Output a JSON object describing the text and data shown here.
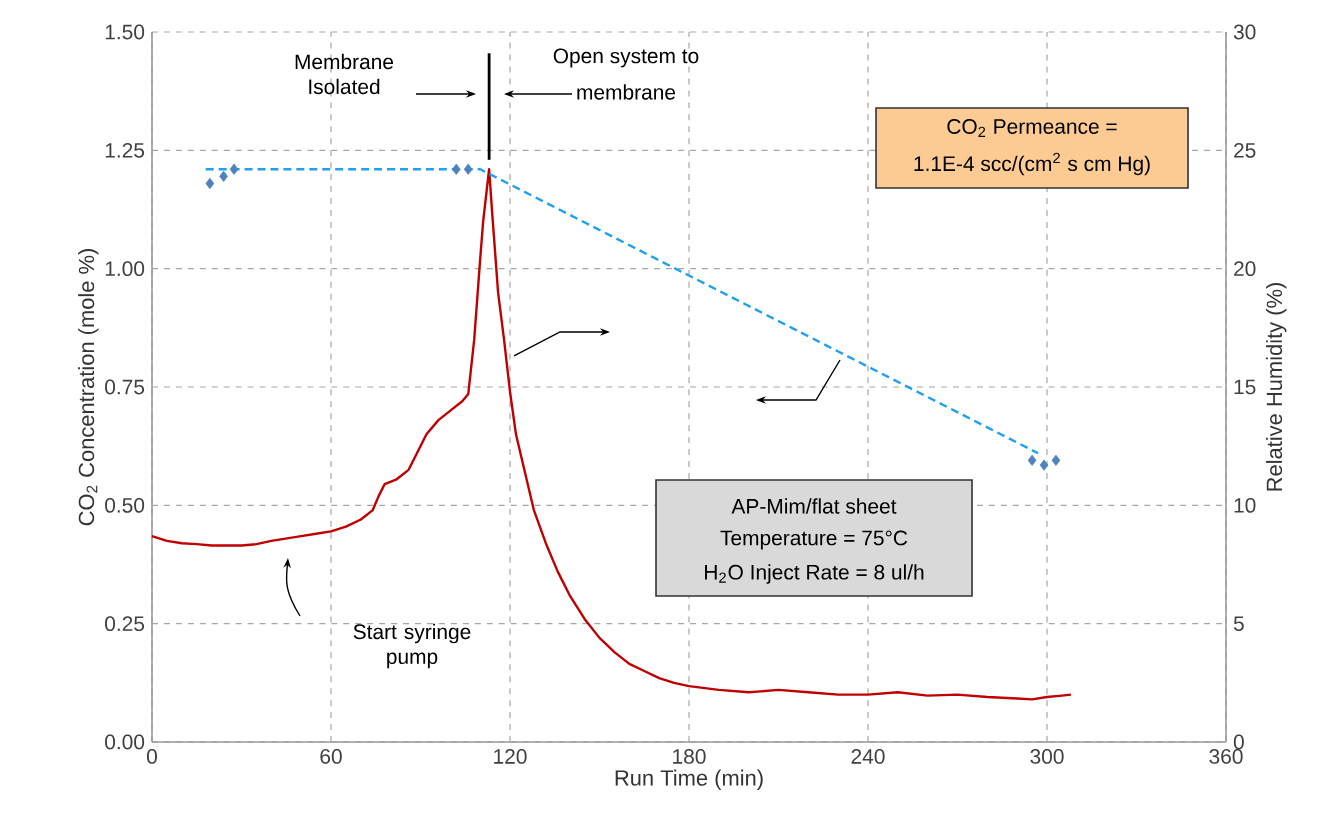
{
  "chart_data": {
    "type": "line",
    "xlabel": "Run Time (min)",
    "ylabel": "CO$_{2}$ Concentration (mole %)",
    "y2label": "Relative Humidity (%)",
    "xlim": [
      0,
      360
    ],
    "xticks": [
      0,
      60,
      120,
      180,
      240,
      300,
      360
    ],
    "ylim": [
      0,
      1.5
    ],
    "yticks": [
      {
        "value": 0,
        "label": "0.00"
      },
      {
        "value": 0.25,
        "label": "0.25"
      },
      {
        "value": 0.5,
        "label": "0.50"
      },
      {
        "value": 0.75,
        "label": "0.75"
      },
      {
        "value": 1,
        "label": "1.00"
      },
      {
        "value": 1.25,
        "label": "1.25"
      },
      {
        "value": 1.5,
        "label": "1.50"
      }
    ],
    "y2lim": [
      0,
      30
    ],
    "y2ticks": [
      0,
      5,
      10,
      15,
      20,
      25,
      30
    ],
    "grid": true,
    "series": [
      {
        "color": "#c00000",
        "x": [
          0,
          5,
          10,
          15,
          20,
          25,
          30,
          35,
          40,
          45,
          50,
          55,
          60,
          65,
          70,
          74,
          76,
          78,
          82,
          86,
          88,
          92,
          96,
          100,
          104,
          106,
          108,
          110,
          111,
          113,
          114,
          116,
          118,
          120,
          122,
          125,
          128,
          132,
          136,
          140,
          145,
          150,
          155,
          160,
          165,
          170,
          175,
          180,
          190,
          200,
          210,
          220,
          230,
          240,
          250,
          260,
          270,
          280,
          290,
          295,
          300,
          305,
          308
        ],
        "values": [
          0.435,
          0.425,
          0.42,
          0.418,
          0.415,
          0.415,
          0.415,
          0.418,
          0.425,
          0.43,
          0.435,
          0.44,
          0.445,
          0.455,
          0.47,
          0.49,
          0.52,
          0.545,
          0.555,
          0.575,
          0.6,
          0.65,
          0.68,
          0.7,
          0.72,
          0.735,
          0.85,
          1.02,
          1.1,
          1.21,
          1.12,
          0.95,
          0.85,
          0.74,
          0.65,
          0.57,
          0.49,
          0.42,
          0.36,
          0.31,
          0.26,
          0.22,
          0.19,
          0.165,
          0.15,
          0.135,
          0.125,
          0.118,
          0.11,
          0.105,
          0.11,
          0.105,
          0.1,
          0.1,
          0.105,
          0.098,
          0.1,
          0.095,
          0.092,
          0.09,
          0.095,
          0.098,
          0.1
        ]
      },
      {
        "type": "line",
        "axis": "y2",
        "color": "#1ea0f0",
        "line_style": "dashed",
        "x": [
          18,
          110,
          297
        ],
        "values": [
          24.2,
          24.2,
          12.2
        ]
      },
      {
        "type": "scatter",
        "axis": "y2",
        "color": "#4f81bd",
        "marker": "diamond",
        "x": [
          19.4,
          24,
          27.5,
          102,
          106,
          295,
          299,
          303
        ],
        "values": [
          23.6,
          23.9,
          24.2,
          24.2,
          24.2,
          11.9,
          11.7,
          11.9
        ]
      }
    ],
    "ref_lines": [
      {
        "axis": "x",
        "value": 113,
        "color": "#000000"
      }
    ],
    "annotations": [
      "Membrane Isolated",
      "Open system to",
      "membrane",
      "CO$_{2}$ Permeance =",
      "1.1E-4 scc/(cm$^{2}$ s cm Hg)",
      "AP-Mim/flat sheet",
      "Temperature = 75°C",
      "H$_{2}$O Inject Rate = 8 ul/h",
      "Start syringe pump"
    ]
  }
}
